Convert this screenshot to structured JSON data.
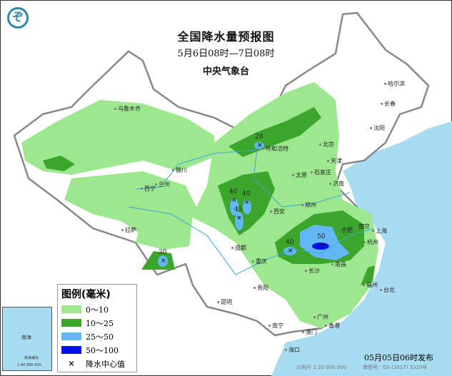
{
  "header": {
    "title": "全国降水量预报图",
    "period": "5月6日08时—7日08时",
    "issuer": "中央气象台",
    "logo_icon": "cma-logo"
  },
  "legend": {
    "title": "图例(毫米)",
    "items": [
      {
        "label": "0～10",
        "color": "#9de88f"
      },
      {
        "label": "10～25",
        "color": "#3ca62c"
      },
      {
        "label": "25～50",
        "color": "#62b8f5"
      },
      {
        "label": "50～100",
        "color": "#0010e8"
      }
    ],
    "center_symbol": "×",
    "center_label": "降水中心值"
  },
  "cities": [
    "乌鲁木齐",
    "拉萨",
    "西宁",
    "兰州",
    "银川",
    "呼和浩特",
    "北京",
    "天津",
    "石家庄",
    "太原",
    "济南",
    "郑州",
    "西安",
    "成都",
    "重庆",
    "哈尔滨",
    "长春",
    "沈阳",
    "合肥",
    "南京",
    "上海",
    "杭州",
    "南昌",
    "长沙",
    "福州",
    "台北",
    "广州",
    "香港",
    "澳门",
    "南宁",
    "贵阳",
    "昆明",
    "海口"
  ],
  "rain_centers": [
    "28",
    "40",
    "40",
    "45",
    "30",
    "40",
    "50"
  ],
  "inset": {
    "sea": "南海",
    "islands": "南海诸岛",
    "scale": "1:40 000 000"
  },
  "footer": {
    "published": "05月05日06时发布",
    "scale": "比例尺 1:20 000 000",
    "review_no": "审图号：GS (2017) 3320号"
  },
  "colors": {
    "sea": "#a8dcf0",
    "border": "#888888",
    "river": "#3aa8d8"
  }
}
